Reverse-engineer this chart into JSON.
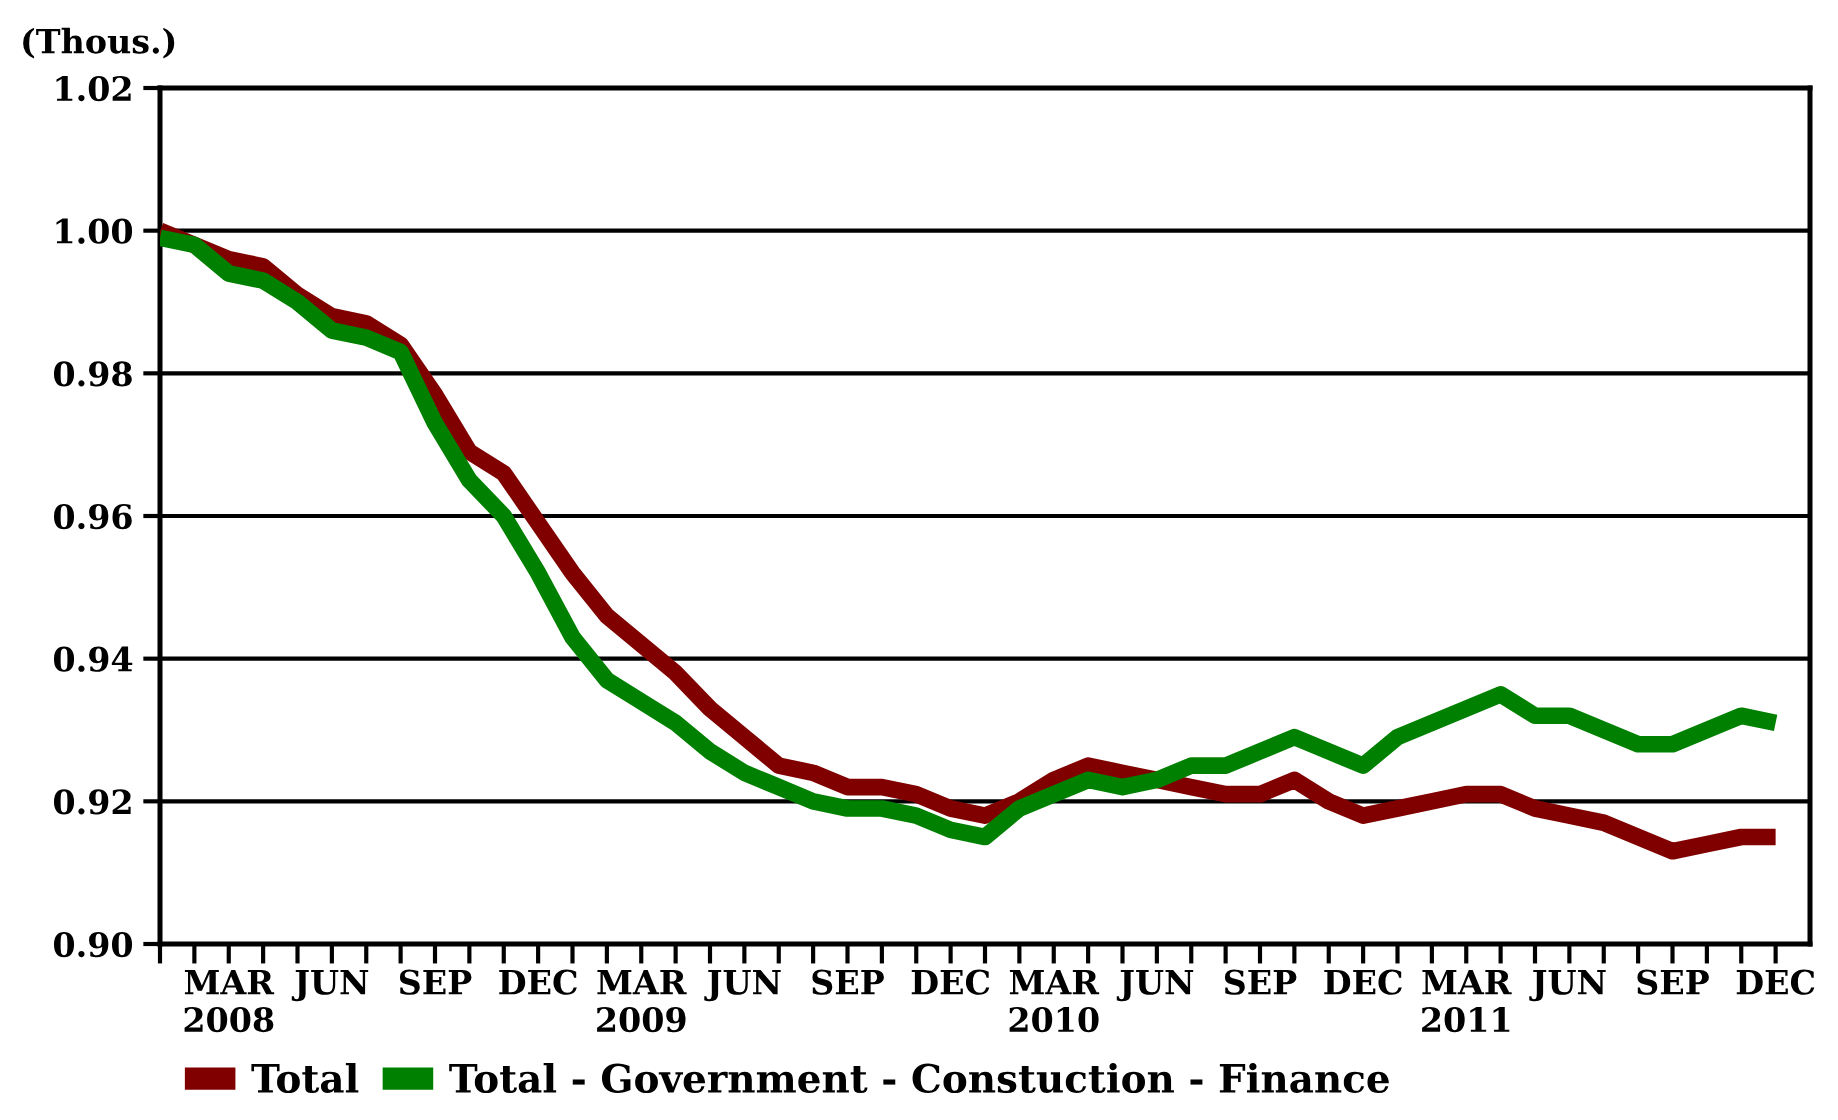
{
  "chart_data": {
    "type": "line",
    "ylabel": "(Thous.)",
    "categories": [
      null,
      null,
      "MAR\n2008",
      null,
      null,
      "JUN",
      null,
      null,
      "SEP",
      null,
      null,
      "DEC",
      null,
      null,
      "MAR\n2009",
      null,
      null,
      "JUN",
      null,
      null,
      "SEP",
      null,
      null,
      "DEC",
      null,
      null,
      "MAR\n2010",
      null,
      null,
      "JUN",
      null,
      null,
      "SEP",
      null,
      null,
      "DEC",
      null,
      null,
      "MAR\n2011",
      null,
      null,
      "JUN",
      null,
      null,
      "SEP",
      null,
      null,
      "DEC"
    ],
    "series": [
      {
        "name": "Total",
        "color": "#800000",
        "values": [
          1.0,
          0.998,
          0.996,
          0.995,
          0.991,
          0.988,
          0.987,
          0.984,
          0.977,
          0.969,
          0.966,
          0.959,
          0.952,
          0.946,
          0.942,
          0.938,
          0.933,
          0.929,
          0.925,
          0.924,
          0.922,
          0.922,
          0.921,
          0.919,
          0.918,
          0.92,
          0.923,
          0.925,
          0.924,
          0.923,
          0.922,
          0.921,
          0.921,
          0.923,
          0.92,
          0.918,
          0.919,
          0.92,
          0.921,
          0.921,
          0.919,
          0.918,
          0.917,
          0.915,
          0.913,
          0.914,
          0.915,
          0.915
        ]
      },
      {
        "name": "Total - Government - Constuction - Finance",
        "color": "#008000",
        "values": [
          0.999,
          0.998,
          0.994,
          0.993,
          0.99,
          0.986,
          0.985,
          0.983,
          0.973,
          0.965,
          0.96,
          0.952,
          0.943,
          0.937,
          0.934,
          0.931,
          0.927,
          0.924,
          0.922,
          0.92,
          0.919,
          0.919,
          0.918,
          0.916,
          0.915,
          0.919,
          0.921,
          0.923,
          0.922,
          0.923,
          0.925,
          0.925,
          0.927,
          0.929,
          0.927,
          0.925,
          0.929,
          0.931,
          0.933,
          0.935,
          0.932,
          0.932,
          0.93,
          0.928,
          0.928,
          0.93,
          0.932,
          0.931
        ]
      }
    ],
    "ylim": [
      0.9,
      1.02
    ],
    "yticks": [
      {
        "value": 0.9,
        "label": "0.90"
      },
      {
        "value": 0.92,
        "label": "0.92"
      },
      {
        "value": 0.94,
        "label": "0.94"
      },
      {
        "value": 0.96,
        "label": "0.96"
      },
      {
        "value": 0.98,
        "label": "0.98"
      },
      {
        "value": 1.0,
        "label": "1.00"
      },
      {
        "value": 1.02,
        "label": "1.02"
      }
    ],
    "grid": "y",
    "legend": "bottom left",
    "marker": "none",
    "line_style": "solid"
  }
}
